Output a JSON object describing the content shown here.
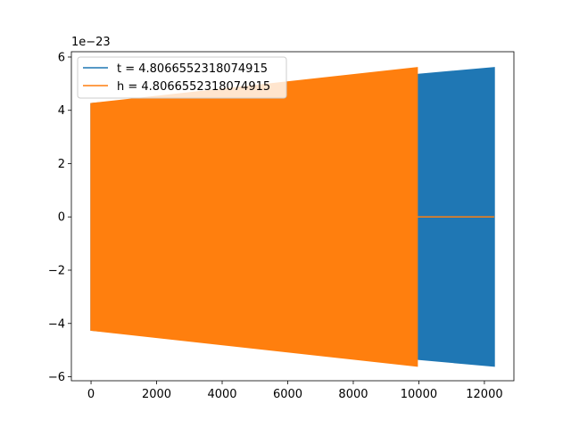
{
  "chart_data": {
    "type": "line",
    "title": "",
    "xlabel": "",
    "ylabel": "",
    "offset_text": "1e−23",
    "xlim": [
      -600,
      12900
    ],
    "ylim": [
      -6.15,
      6.2
    ],
    "xticks": [
      0,
      2000,
      4000,
      6000,
      8000,
      10000,
      12000
    ],
    "xtick_labels": [
      "0",
      "2000",
      "4000",
      "6000",
      "8000",
      "10000",
      "12000"
    ],
    "yticks": [
      -6,
      -4,
      -2,
      0,
      2,
      4,
      6
    ],
    "ytick_labels": [
      "−6",
      "−4",
      "−2",
      "0",
      "2",
      "4",
      "6"
    ],
    "grid": false,
    "legend_position": "upper-left",
    "series": [
      {
        "name": "t = 4.8066552318074915",
        "color": "#1f77b4",
        "x_range": [
          0,
          12300
        ],
        "amplitude_envelope": {
          "x": [
            0,
            12300
          ],
          "y": [
            4.25,
            5.6
          ]
        }
      },
      {
        "name": "h = 4.8066552318074915",
        "color": "#ff7f0e",
        "x_range": [
          0,
          12300
        ],
        "oscillation_end_x": 9950,
        "amplitude_envelope": {
          "x": [
            0,
            9950
          ],
          "y": [
            4.25,
            5.6
          ]
        },
        "value_after_end": 0
      }
    ]
  }
}
